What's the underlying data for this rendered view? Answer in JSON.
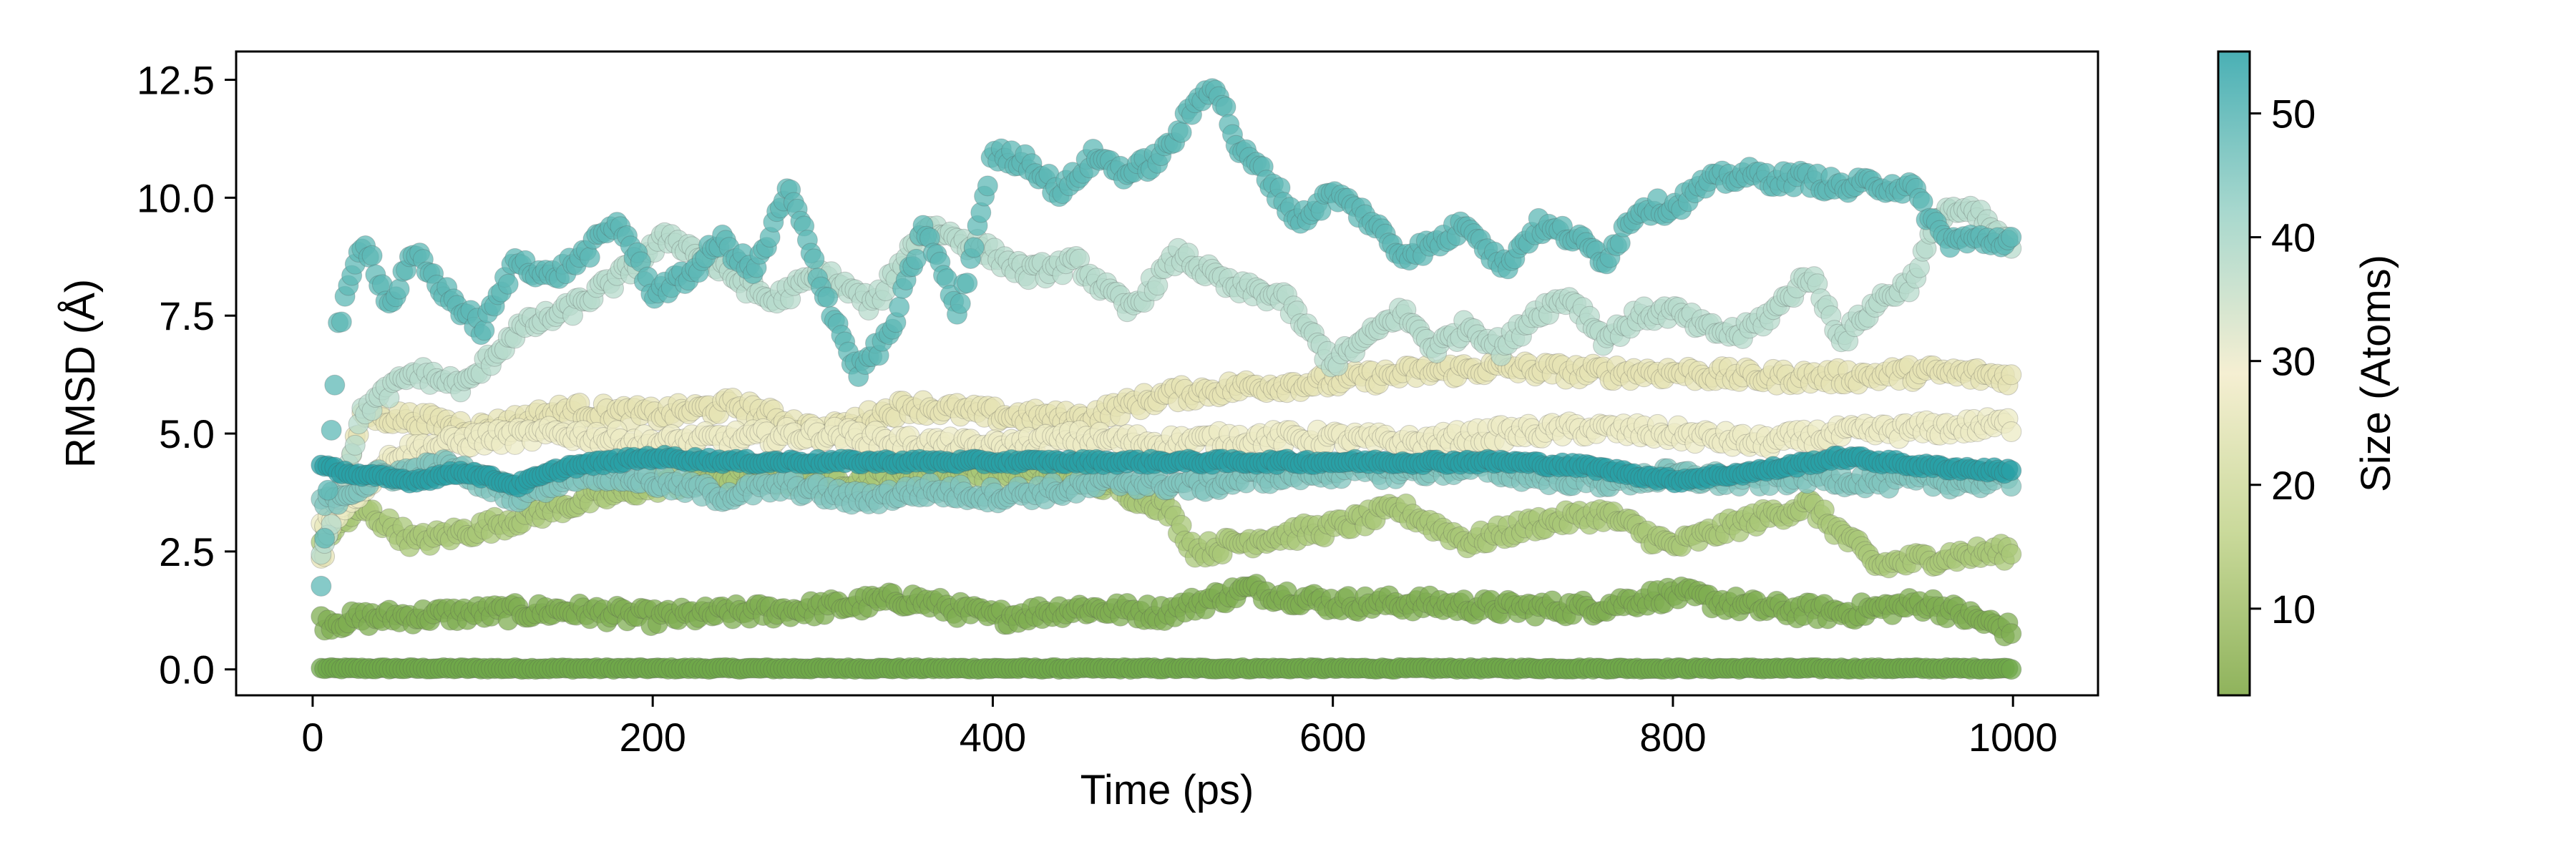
{
  "chart_data": {
    "type": "scatter",
    "title": "",
    "xlabel": "Time (ps)",
    "ylabel": "RMSD (Å)",
    "xlim": [
      -45,
      1050
    ],
    "ylim": [
      -0.55,
      13.1
    ],
    "xticks": [
      0,
      200,
      400,
      600,
      800,
      1000
    ],
    "xtick_labels": [
      "0",
      "200",
      "400",
      "600",
      "800",
      "1000"
    ],
    "yticks": [
      0.0,
      2.5,
      5.0,
      7.5,
      10.0,
      12.5
    ],
    "ytick_labels": [
      "0.0",
      "2.5",
      "5.0",
      "7.5",
      "10.0",
      "12.5"
    ],
    "grid": false,
    "legend": false,
    "colorbar": {
      "label": "Size (Atoms)",
      "range": [
        3,
        55
      ],
      "ticks": [
        10,
        20,
        30,
        40,
        50
      ],
      "tick_labels": [
        "10",
        "20",
        "30",
        "40",
        "50"
      ],
      "colors": [
        "#8fb35c",
        "#c9d99a",
        "#f5efd2",
        "#a8d8ce",
        "#4ab0b5"
      ]
    },
    "series": [
      {
        "size": 3,
        "color": "#6fa84a",
        "x": [
          5,
          200,
          400,
          600,
          800,
          1000
        ],
        "y": [
          0.02,
          0.02,
          0.02,
          0.02,
          0.02,
          0.02
        ]
      },
      {
        "size": 10,
        "color": "#7fae52",
        "x": [
          5,
          40,
          100,
          150,
          200,
          250,
          300,
          350,
          400,
          450,
          500,
          550,
          600,
          650,
          700,
          750,
          800,
          850,
          900,
          950,
          1000
        ],
        "y": [
          1.0,
          1.1,
          1.2,
          1.25,
          1.1,
          1.2,
          1.3,
          1.5,
          1.1,
          1.3,
          1.2,
          1.7,
          1.4,
          1.4,
          1.3,
          1.3,
          1.6,
          1.3,
          1.2,
          1.4,
          0.8
        ]
      },
      {
        "size": 15,
        "color": "#a8c777",
        "x": [
          5,
          30,
          60,
          100,
          150,
          200,
          250,
          300,
          350,
          400,
          450,
          500,
          520,
          560,
          600,
          640,
          680,
          720,
          760,
          800,
          840,
          880,
          920,
          960,
          1000
        ],
        "y": [
          2.8,
          3.4,
          2.7,
          3.0,
          3.5,
          3.9,
          4.1,
          4.0,
          4.1,
          4.2,
          4.1,
          3.5,
          2.5,
          2.8,
          3.0,
          3.4,
          2.7,
          3.1,
          3.3,
          2.6,
          3.1,
          3.5,
          2.2,
          2.4,
          2.5
        ]
      },
      {
        "size": 25,
        "color": "#e6e3b4",
        "x": [
          5,
          30,
          60,
          100,
          150,
          200,
          250,
          300,
          350,
          400,
          450,
          500,
          550,
          600,
          650,
          700,
          750,
          800,
          850,
          900,
          950,
          1000
        ],
        "y": [
          2.3,
          5.4,
          5.3,
          5.1,
          5.5,
          5.4,
          5.6,
          5.0,
          5.6,
          5.4,
          5.3,
          5.8,
          6.0,
          6.1,
          6.3,
          6.4,
          6.3,
          6.3,
          6.2,
          6.2,
          6.3,
          6.2
        ]
      },
      {
        "size": 28,
        "color": "#ecebc4",
        "x": [
          5,
          50,
          100,
          150,
          200,
          250,
          300,
          350,
          400,
          450,
          500,
          550,
          600,
          650,
          700,
          750,
          800,
          850,
          900,
          950,
          1000
        ],
        "y": [
          3.0,
          4.6,
          4.9,
          5.0,
          4.8,
          4.9,
          5.0,
          4.8,
          4.7,
          4.9,
          4.8,
          4.9,
          4.9,
          4.8,
          5.0,
          5.1,
          5.0,
          4.8,
          5.0,
          5.1,
          5.2
        ]
      },
      {
        "size": 38,
        "color": "#b7dbcc",
        "x": [
          5,
          30,
          60,
          90,
          120,
          150,
          180,
          210,
          240,
          270,
          300,
          330,
          360,
          390,
          420,
          450,
          480,
          510,
          540,
          570,
          600,
          620,
          640,
          660,
          680,
          700,
          720,
          740,
          760,
          780,
          800,
          820,
          840,
          860,
          880,
          900,
          920,
          940,
          960,
          980,
          1000
        ],
        "y": [
          2.5,
          5.5,
          6.3,
          6.0,
          7.2,
          7.6,
          8.3,
          9.2,
          8.5,
          7.8,
          8.4,
          7.7,
          9.4,
          9.0,
          8.4,
          8.6,
          7.6,
          8.8,
          8.1,
          7.9,
          6.5,
          7.0,
          7.6,
          6.8,
          7.3,
          6.8,
          7.6,
          7.9,
          7.0,
          7.5,
          7.6,
          7.2,
          7.1,
          7.6,
          8.4,
          7.0,
          7.8,
          8.2,
          9.8,
          9.6,
          8.9
        ]
      },
      {
        "size": 45,
        "color": "#80c4bd",
        "x": [
          5,
          40,
          80,
          120,
          160,
          200,
          240,
          280,
          320,
          360,
          400,
          440,
          480,
          520,
          560,
          600,
          640,
          680,
          720,
          760,
          800,
          840,
          880,
          920,
          960,
          1000
        ],
        "y": [
          3.5,
          4.1,
          4.3,
          3.7,
          4.2,
          4.0,
          3.7,
          3.9,
          3.6,
          3.8,
          3.7,
          3.8,
          4.0,
          3.9,
          4.1,
          4.2,
          4.2,
          4.3,
          4.1,
          4.0,
          4.1,
          4.0,
          4.1,
          4.0,
          4.0,
          4.0
        ]
      },
      {
        "size": 50,
        "color": "#5db8b6",
        "x": [
          5,
          15,
          30,
          45,
          60,
          80,
          100,
          120,
          140,
          160,
          180,
          200,
          220,
          240,
          260,
          280,
          300,
          320,
          340,
          360,
          380,
          400,
          420,
          440,
          460,
          480,
          500,
          520,
          530,
          545,
          560,
          580,
          600,
          620,
          640,
          660,
          680,
          700,
          720,
          740,
          760,
          780,
          800,
          820,
          840,
          860,
          880,
          900,
          920,
          940,
          960,
          980,
          1000
        ],
        "y": [
          1.8,
          7.2,
          9.2,
          7.7,
          8.8,
          7.9,
          7.2,
          8.7,
          8.3,
          8.8,
          9.5,
          8.0,
          8.3,
          9.1,
          8.4,
          10.2,
          8.1,
          6.3,
          7.1,
          9.4,
          7.5,
          10.9,
          10.8,
          10.1,
          10.9,
          10.5,
          10.9,
          12.0,
          12.5,
          11.0,
          10.5,
          9.5,
          10.1,
          9.6,
          8.8,
          9.0,
          9.5,
          8.5,
          9.4,
          9.2,
          8.7,
          9.8,
          9.8,
          10.3,
          10.5,
          10.4,
          10.4,
          10.2,
          10.3,
          10.2,
          9.1,
          9.1,
          9.1
        ]
      },
      {
        "size": 55,
        "color": "#2aa0a6",
        "x": [
          5,
          30,
          60,
          90,
          120,
          150,
          200,
          250,
          300,
          350,
          400,
          450,
          500,
          550,
          600,
          650,
          700,
          750,
          800,
          850,
          900,
          950,
          1000
        ],
        "y": [
          4.3,
          4.1,
          4.0,
          4.2,
          3.9,
          4.3,
          4.5,
          4.4,
          4.4,
          4.4,
          4.4,
          4.4,
          4.4,
          4.4,
          4.4,
          4.4,
          4.4,
          4.3,
          4.0,
          4.2,
          4.5,
          4.3,
          4.2
        ]
      }
    ]
  }
}
